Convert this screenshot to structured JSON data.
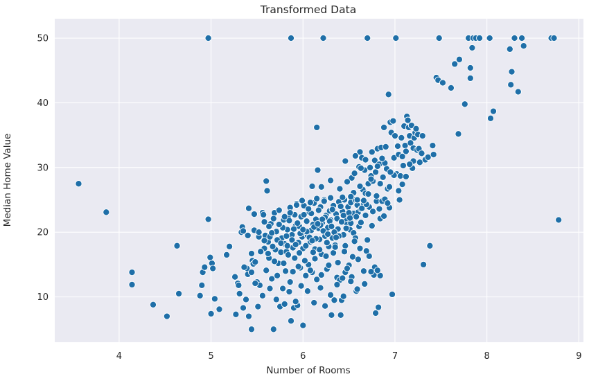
{
  "chart_data": {
    "type": "scatter",
    "title": "Transformed Data",
    "xlabel": "Number of Rooms",
    "ylabel": "Median Home Value",
    "xlim": [
      3.3,
      9.05
    ],
    "ylim": [
      3.0,
      53.0
    ],
    "xticks": [
      4,
      5,
      6,
      7,
      8,
      9
    ],
    "yticks": [
      10,
      20,
      30,
      40,
      50
    ],
    "grid": true,
    "background": "#eaeaf2",
    "point_color": "#1f6fa8",
    "points": [
      [
        3.56,
        27.5
      ],
      [
        3.86,
        23.1
      ],
      [
        4.14,
        13.8
      ],
      [
        4.14,
        11.9
      ],
      [
        4.37,
        8.8
      ],
      [
        4.52,
        7.0
      ],
      [
        4.63,
        17.9
      ],
      [
        4.65,
        10.5
      ],
      [
        4.88,
        10.2
      ],
      [
        4.9,
        11.8
      ],
      [
        4.91,
        13.8
      ],
      [
        4.93,
        14.6
      ],
      [
        4.97,
        22.0
      ],
      [
        4.97,
        50.0
      ],
      [
        4.99,
        16.1
      ],
      [
        5.0,
        7.4
      ],
      [
        5.01,
        15.2
      ],
      [
        5.02,
        14.4
      ],
      [
        5.04,
        9.7
      ],
      [
        5.09,
        8.1
      ],
      [
        5.17,
        16.5
      ],
      [
        5.2,
        17.8
      ],
      [
        5.26,
        13.1
      ],
      [
        5.27,
        7.3
      ],
      [
        5.29,
        12.1
      ],
      [
        5.31,
        10.5
      ],
      [
        5.33,
        20.0
      ],
      [
        5.34,
        20.8
      ],
      [
        5.35,
        8.3
      ],
      [
        5.39,
        14.4
      ],
      [
        5.4,
        13.5
      ],
      [
        5.41,
        23.7
      ],
      [
        5.41,
        7.0
      ],
      [
        5.44,
        5.0
      ],
      [
        5.45,
        15.6
      ],
      [
        5.46,
        15.1
      ],
      [
        5.47,
        20.3
      ],
      [
        5.5,
        12.3
      ],
      [
        5.51,
        8.5
      ],
      [
        5.53,
        11.8
      ],
      [
        5.56,
        23.0
      ],
      [
        5.57,
        22.7
      ],
      [
        5.58,
        17.5
      ],
      [
        5.59,
        19.5
      ],
      [
        5.6,
        14.1
      ],
      [
        5.6,
        27.9
      ],
      [
        5.61,
        26.4
      ],
      [
        5.62,
        18.5
      ],
      [
        5.63,
        16.0
      ],
      [
        5.64,
        19.3
      ],
      [
        5.65,
        21.3
      ],
      [
        5.66,
        12.8
      ],
      [
        5.68,
        5.0
      ],
      [
        5.69,
        23.0
      ],
      [
        5.7,
        17.3
      ],
      [
        5.71,
        20.1
      ],
      [
        5.72,
        13.3
      ],
      [
        5.73,
        15.2
      ],
      [
        5.75,
        8.5
      ],
      [
        5.76,
        16.9
      ],
      [
        5.77,
        19.1
      ],
      [
        5.78,
        11.3
      ],
      [
        5.79,
        21.9
      ],
      [
        5.8,
        18.2
      ],
      [
        5.81,
        14.0
      ],
      [
        5.82,
        17.0
      ],
      [
        5.83,
        20.4
      ],
      [
        5.84,
        22.2
      ],
      [
        5.85,
        10.8
      ],
      [
        5.86,
        23.8
      ],
      [
        5.87,
        6.3
      ],
      [
        5.87,
        50.0
      ],
      [
        5.88,
        19.6
      ],
      [
        5.89,
        17.6
      ],
      [
        5.9,
        8.3
      ],
      [
        5.91,
        16.0
      ],
      [
        5.92,
        21.0
      ],
      [
        5.93,
        24.4
      ],
      [
        5.94,
        8.7
      ],
      [
        5.95,
        18.4
      ],
      [
        5.96,
        20.9
      ],
      [
        5.97,
        14.5
      ],
      [
        5.98,
        22.4
      ],
      [
        5.99,
        19.3
      ],
      [
        6.0,
        5.6
      ],
      [
        6.0,
        17.5
      ],
      [
        6.01,
        24.1
      ],
      [
        6.02,
        20.0
      ],
      [
        6.03,
        13.3
      ],
      [
        6.04,
        21.7
      ],
      [
        6.05,
        19.5
      ],
      [
        6.06,
        15.0
      ],
      [
        6.07,
        23.1
      ],
      [
        6.08,
        18.5
      ],
      [
        6.09,
        20.3
      ],
      [
        6.1,
        13.8
      ],
      [
        6.11,
        21.2
      ],
      [
        6.12,
        24.5
      ],
      [
        6.13,
        17.4
      ],
      [
        6.14,
        22.0
      ],
      [
        6.15,
        36.2
      ],
      [
        6.15,
        12.7
      ],
      [
        6.16,
        29.6
      ],
      [
        6.17,
        20.6
      ],
      [
        6.18,
        18.9
      ],
      [
        6.19,
        23.9
      ],
      [
        6.2,
        16.6
      ],
      [
        6.21,
        21.5
      ],
      [
        6.22,
        50.0
      ],
      [
        6.23,
        25.0
      ],
      [
        6.24,
        19.4
      ],
      [
        6.25,
        22.6
      ],
      [
        6.26,
        14.3
      ],
      [
        6.27,
        20.7
      ],
      [
        6.28,
        17.8
      ],
      [
        6.29,
        23.3
      ],
      [
        6.3,
        21.9
      ],
      [
        6.31,
        7.2
      ],
      [
        6.32,
        19.1
      ],
      [
        6.33,
        24.1
      ],
      [
        6.34,
        9.5
      ],
      [
        6.35,
        18.0
      ],
      [
        6.36,
        22.8
      ],
      [
        6.37,
        13.0
      ],
      [
        6.38,
        20.5
      ],
      [
        6.39,
        24.7
      ],
      [
        6.4,
        12.6
      ],
      [
        6.41,
        7.2
      ],
      [
        6.42,
        9.5
      ],
      [
        6.43,
        23.2
      ],
      [
        6.44,
        19.6
      ],
      [
        6.45,
        25.0
      ],
      [
        6.46,
        13.8
      ],
      [
        6.47,
        22.0
      ],
      [
        6.48,
        21.2
      ],
      [
        6.49,
        23.9
      ],
      [
        6.5,
        14.9
      ],
      [
        6.51,
        20.4
      ],
      [
        6.52,
        24.6
      ],
      [
        6.53,
        28.4
      ],
      [
        6.54,
        16.2
      ],
      [
        6.55,
        22.9
      ],
      [
        6.56,
        29.1
      ],
      [
        6.57,
        25.0
      ],
      [
        6.58,
        10.9
      ],
      [
        6.59,
        24.2
      ],
      [
        6.6,
        23.1
      ],
      [
        6.61,
        30.1
      ],
      [
        6.62,
        32.4
      ],
      [
        6.63,
        23.6
      ],
      [
        6.64,
        31.5
      ],
      [
        6.65,
        26.6
      ],
      [
        6.66,
        24.4
      ],
      [
        6.67,
        29.6
      ],
      [
        6.68,
        22.6
      ],
      [
        6.69,
        17.1
      ],
      [
        6.7,
        50.0
      ],
      [
        6.71,
        27.5
      ],
      [
        6.72,
        23.9
      ],
      [
        6.73,
        30.0
      ],
      [
        6.74,
        28.7
      ],
      [
        6.75,
        32.4
      ],
      [
        6.76,
        27.9
      ],
      [
        6.77,
        13.4
      ],
      [
        6.78,
        31.1
      ],
      [
        6.79,
        7.5
      ],
      [
        6.8,
        24.8
      ],
      [
        6.81,
        32.9
      ],
      [
        6.82,
        8.4
      ],
      [
        6.83,
        30.5
      ],
      [
        6.84,
        22.1
      ],
      [
        6.85,
        33.1
      ],
      [
        6.86,
        24.8
      ],
      [
        6.87,
        28.5
      ],
      [
        6.88,
        36.2
      ],
      [
        6.89,
        25.1
      ],
      [
        6.9,
        33.2
      ],
      [
        6.91,
        29.8
      ],
      [
        6.92,
        26.7
      ],
      [
        6.93,
        41.3
      ],
      [
        6.94,
        23.8
      ],
      [
        6.95,
        37.0
      ],
      [
        6.96,
        35.4
      ],
      [
        6.97,
        10.4
      ],
      [
        6.98,
        37.2
      ],
      [
        6.99,
        31.5
      ],
      [
        7.0,
        34.9
      ],
      [
        7.01,
        50.0
      ],
      [
        7.02,
        29.0
      ],
      [
        7.03,
        33.3
      ],
      [
        7.04,
        32.0
      ],
      [
        7.05,
        25.0
      ],
      [
        7.06,
        28.7
      ],
      [
        7.07,
        34.6
      ],
      [
        7.08,
        31.7
      ],
      [
        7.09,
        30.3
      ],
      [
        7.1,
        36.4
      ],
      [
        7.11,
        33.4
      ],
      [
        7.12,
        32.5
      ],
      [
        7.13,
        37.9
      ],
      [
        7.14,
        37.3
      ],
      [
        7.15,
        36.2
      ],
      [
        7.16,
        34.9
      ],
      [
        7.17,
        33.8
      ],
      [
        7.18,
        36.5
      ],
      [
        7.19,
        29.9
      ],
      [
        7.2,
        33.0
      ],
      [
        7.21,
        34.6
      ],
      [
        7.22,
        35.4
      ],
      [
        7.23,
        36.0
      ],
      [
        7.24,
        32.7
      ],
      [
        7.25,
        35.1
      ],
      [
        7.26,
        32.9
      ],
      [
        7.27,
        30.8
      ],
      [
        7.29,
        32.2
      ],
      [
        7.31,
        15.0
      ],
      [
        7.33,
        31.2
      ],
      [
        7.36,
        31.6
      ],
      [
        7.38,
        17.9
      ],
      [
        7.41,
        33.4
      ],
      [
        7.42,
        32.0
      ],
      [
        7.45,
        43.9
      ],
      [
        7.47,
        43.5
      ],
      [
        7.48,
        50.0
      ],
      [
        7.52,
        43.1
      ],
      [
        7.61,
        42.3
      ],
      [
        7.65,
        46.0
      ],
      [
        7.69,
        35.2
      ],
      [
        7.7,
        46.7
      ],
      [
        7.76,
        39.8
      ],
      [
        7.8,
        50.0
      ],
      [
        7.82,
        43.8
      ],
      [
        7.82,
        45.4
      ],
      [
        7.84,
        48.5
      ],
      [
        7.85,
        50.0
      ],
      [
        7.88,
        50.0
      ],
      [
        7.92,
        50.0
      ],
      [
        8.03,
        50.0
      ],
      [
        8.04,
        37.6
      ],
      [
        8.07,
        38.7
      ],
      [
        8.25,
        48.3
      ],
      [
        8.26,
        42.8
      ],
      [
        8.27,
        44.8
      ],
      [
        8.3,
        50.0
      ],
      [
        8.34,
        41.7
      ],
      [
        8.38,
        50.0
      ],
      [
        8.4,
        48.8
      ],
      [
        8.7,
        50.0
      ],
      [
        8.73,
        50.0
      ],
      [
        8.78,
        21.9
      ],
      [
        5.9,
        20.5
      ],
      [
        5.94,
        21.4
      ],
      [
        5.97,
        19.8
      ],
      [
        6.01,
        22.7
      ],
      [
        6.04,
        20.1
      ],
      [
        6.07,
        19.2
      ],
      [
        6.09,
        22.9
      ],
      [
        6.12,
        20.8
      ],
      [
        6.14,
        19.0
      ],
      [
        6.17,
        23.4
      ],
      [
        6.19,
        21.1
      ],
      [
        6.22,
        20.2
      ],
      [
        6.24,
        22.3
      ],
      [
        6.27,
        19.7
      ],
      [
        6.29,
        21.7
      ],
      [
        6.32,
        23.5
      ],
      [
        6.34,
        20.0
      ],
      [
        6.37,
        22.1
      ],
      [
        6.39,
        19.4
      ],
      [
        6.42,
        21.6
      ],
      [
        6.44,
        22.6
      ],
      [
        6.47,
        20.6
      ],
      [
        6.5,
        23.0
      ],
      [
        6.52,
        21.4
      ],
      [
        6.55,
        19.9
      ],
      [
        6.58,
        22.4
      ],
      [
        6.61,
        20.9
      ],
      [
        6.64,
        23.7
      ],
      [
        5.78,
        20.7
      ],
      [
        5.82,
        19.4
      ],
      [
        5.85,
        21.8
      ],
      [
        5.88,
        18.8
      ],
      [
        5.91,
        22.7
      ],
      [
        6.0,
        20.4
      ],
      [
        6.06,
        23.6
      ],
      [
        6.1,
        18.7
      ],
      [
        6.16,
        21.3
      ],
      [
        6.21,
        22.0
      ],
      [
        6.26,
        18.4
      ],
      [
        6.31,
        20.9
      ],
      [
        6.36,
        19.2
      ],
      [
        6.41,
        24.0
      ],
      [
        6.46,
        17.9
      ],
      [
        6.51,
        22.2
      ],
      [
        6.57,
        19.1
      ],
      [
        6.63,
        21.5
      ],
      [
        6.69,
        24.3
      ],
      [
        6.75,
        21.0
      ],
      [
        6.8,
        25.6
      ],
      [
        6.88,
        22.5
      ],
      [
        5.72,
        18.8
      ],
      [
        5.74,
        21.2
      ],
      [
        5.67,
        17.8
      ],
      [
        5.62,
        16.7
      ],
      [
        5.69,
        15.5
      ],
      [
        5.79,
        15.2
      ],
      [
        5.84,
        16.5
      ],
      [
        5.89,
        13.9
      ],
      [
        5.95,
        14.7
      ],
      [
        6.02,
        15.6
      ],
      [
        6.08,
        14.1
      ],
      [
        6.13,
        15.9
      ],
      [
        6.2,
        13.4
      ],
      [
        6.28,
        14.9
      ],
      [
        6.33,
        16.8
      ],
      [
        6.38,
        15.3
      ],
      [
        6.43,
        12.9
      ],
      [
        6.48,
        14.4
      ],
      [
        6.53,
        13.1
      ],
      [
        6.6,
        15.8
      ],
      [
        6.66,
        14.0
      ],
      [
        6.72,
        16.3
      ],
      [
        6.78,
        14.6
      ],
      [
        6.84,
        13.3
      ],
      [
        6.7,
        18.8
      ],
      [
        6.62,
        17.5
      ],
      [
        6.56,
        18.6
      ],
      [
        6.45,
        17.0
      ],
      [
        6.35,
        17.7
      ],
      [
        6.25,
        16.3
      ],
      [
        6.18,
        17.3
      ],
      [
        6.11,
        16.9
      ],
      [
        6.03,
        17.9
      ],
      [
        5.96,
        16.8
      ],
      [
        5.92,
        18.1
      ],
      [
        5.83,
        17.9
      ],
      [
        5.76,
        18.3
      ],
      [
        5.66,
        19.9
      ],
      [
        5.58,
        18.7
      ],
      [
        5.54,
        17.0
      ],
      [
        5.52,
        19.3
      ],
      [
        5.48,
        15.4
      ],
      [
        5.44,
        13.8
      ],
      [
        5.36,
        14.6
      ],
      [
        5.3,
        11.8
      ],
      [
        5.38,
        9.6
      ],
      [
        5.48,
        12.1
      ],
      [
        5.56,
        10.2
      ],
      [
        5.64,
        11.3
      ],
      [
        5.71,
        9.6
      ],
      [
        5.8,
        8.9
      ],
      [
        5.86,
        12.3
      ],
      [
        5.92,
        9.3
      ],
      [
        5.98,
        11.7
      ],
      [
        6.05,
        10.9
      ],
      [
        6.12,
        9.1
      ],
      [
        6.19,
        11.4
      ],
      [
        6.24,
        8.6
      ],
      [
        6.3,
        10.3
      ],
      [
        6.37,
        11.9
      ],
      [
        6.44,
        10.1
      ],
      [
        6.52,
        12.4
      ],
      [
        6.59,
        11.2
      ],
      [
        6.67,
        12.0
      ],
      [
        6.74,
        13.9
      ],
      [
        6.81,
        14.1
      ],
      [
        6.4,
        26.7
      ],
      [
        6.48,
        27.8
      ],
      [
        6.55,
        26.1
      ],
      [
        6.62,
        27.1
      ],
      [
        6.68,
        26.0
      ],
      [
        6.74,
        28.2
      ],
      [
        6.79,
        29.3
      ],
      [
        6.84,
        27.5
      ],
      [
        6.89,
        30.7
      ],
      [
        6.94,
        27.0
      ],
      [
        6.99,
        28.8
      ],
      [
        7.04,
        26.4
      ],
      [
        6.43,
        25.4
      ],
      [
        6.52,
        25.5
      ],
      [
        6.59,
        25.0
      ],
      [
        6.66,
        24.9
      ],
      [
        6.71,
        25.9
      ],
      [
        6.76,
        23.2
      ],
      [
        6.83,
        23.6
      ],
      [
        6.92,
        24.5
      ],
      [
        6.3,
        25.3
      ],
      [
        6.23,
        24.8
      ],
      [
        6.15,
        25.2
      ],
      [
        6.08,
        24.6
      ],
      [
        6.2,
        27.0
      ],
      [
        6.3,
        28.0
      ],
      [
        6.1,
        27.1
      ],
      [
        5.99,
        24.9
      ],
      [
        5.93,
        24.2
      ],
      [
        5.86,
        23.0
      ],
      [
        5.8,
        22.4
      ],
      [
        5.74,
        23.4
      ],
      [
        5.68,
        22.1
      ],
      [
        5.63,
        20.9
      ],
      [
        5.58,
        21.6
      ],
      [
        5.52,
        20.0
      ],
      [
        5.4,
        19.5
      ],
      [
        5.35,
        20.2
      ],
      [
        5.47,
        22.8
      ],
      [
        5.44,
        16.7
      ],
      [
        6.46,
        31.0
      ],
      [
        6.57,
        31.8
      ],
      [
        6.63,
        29.9
      ],
      [
        6.68,
        31.2
      ],
      [
        6.81,
        30.2
      ],
      [
        6.86,
        31.4
      ],
      [
        6.95,
        29.3
      ],
      [
        7.08,
        27.4
      ],
      [
        7.12,
        28.6
      ],
      [
        7.2,
        31.0
      ],
      [
        7.3,
        34.9
      ],
      [
        7.16,
        30.5
      ]
    ]
  }
}
